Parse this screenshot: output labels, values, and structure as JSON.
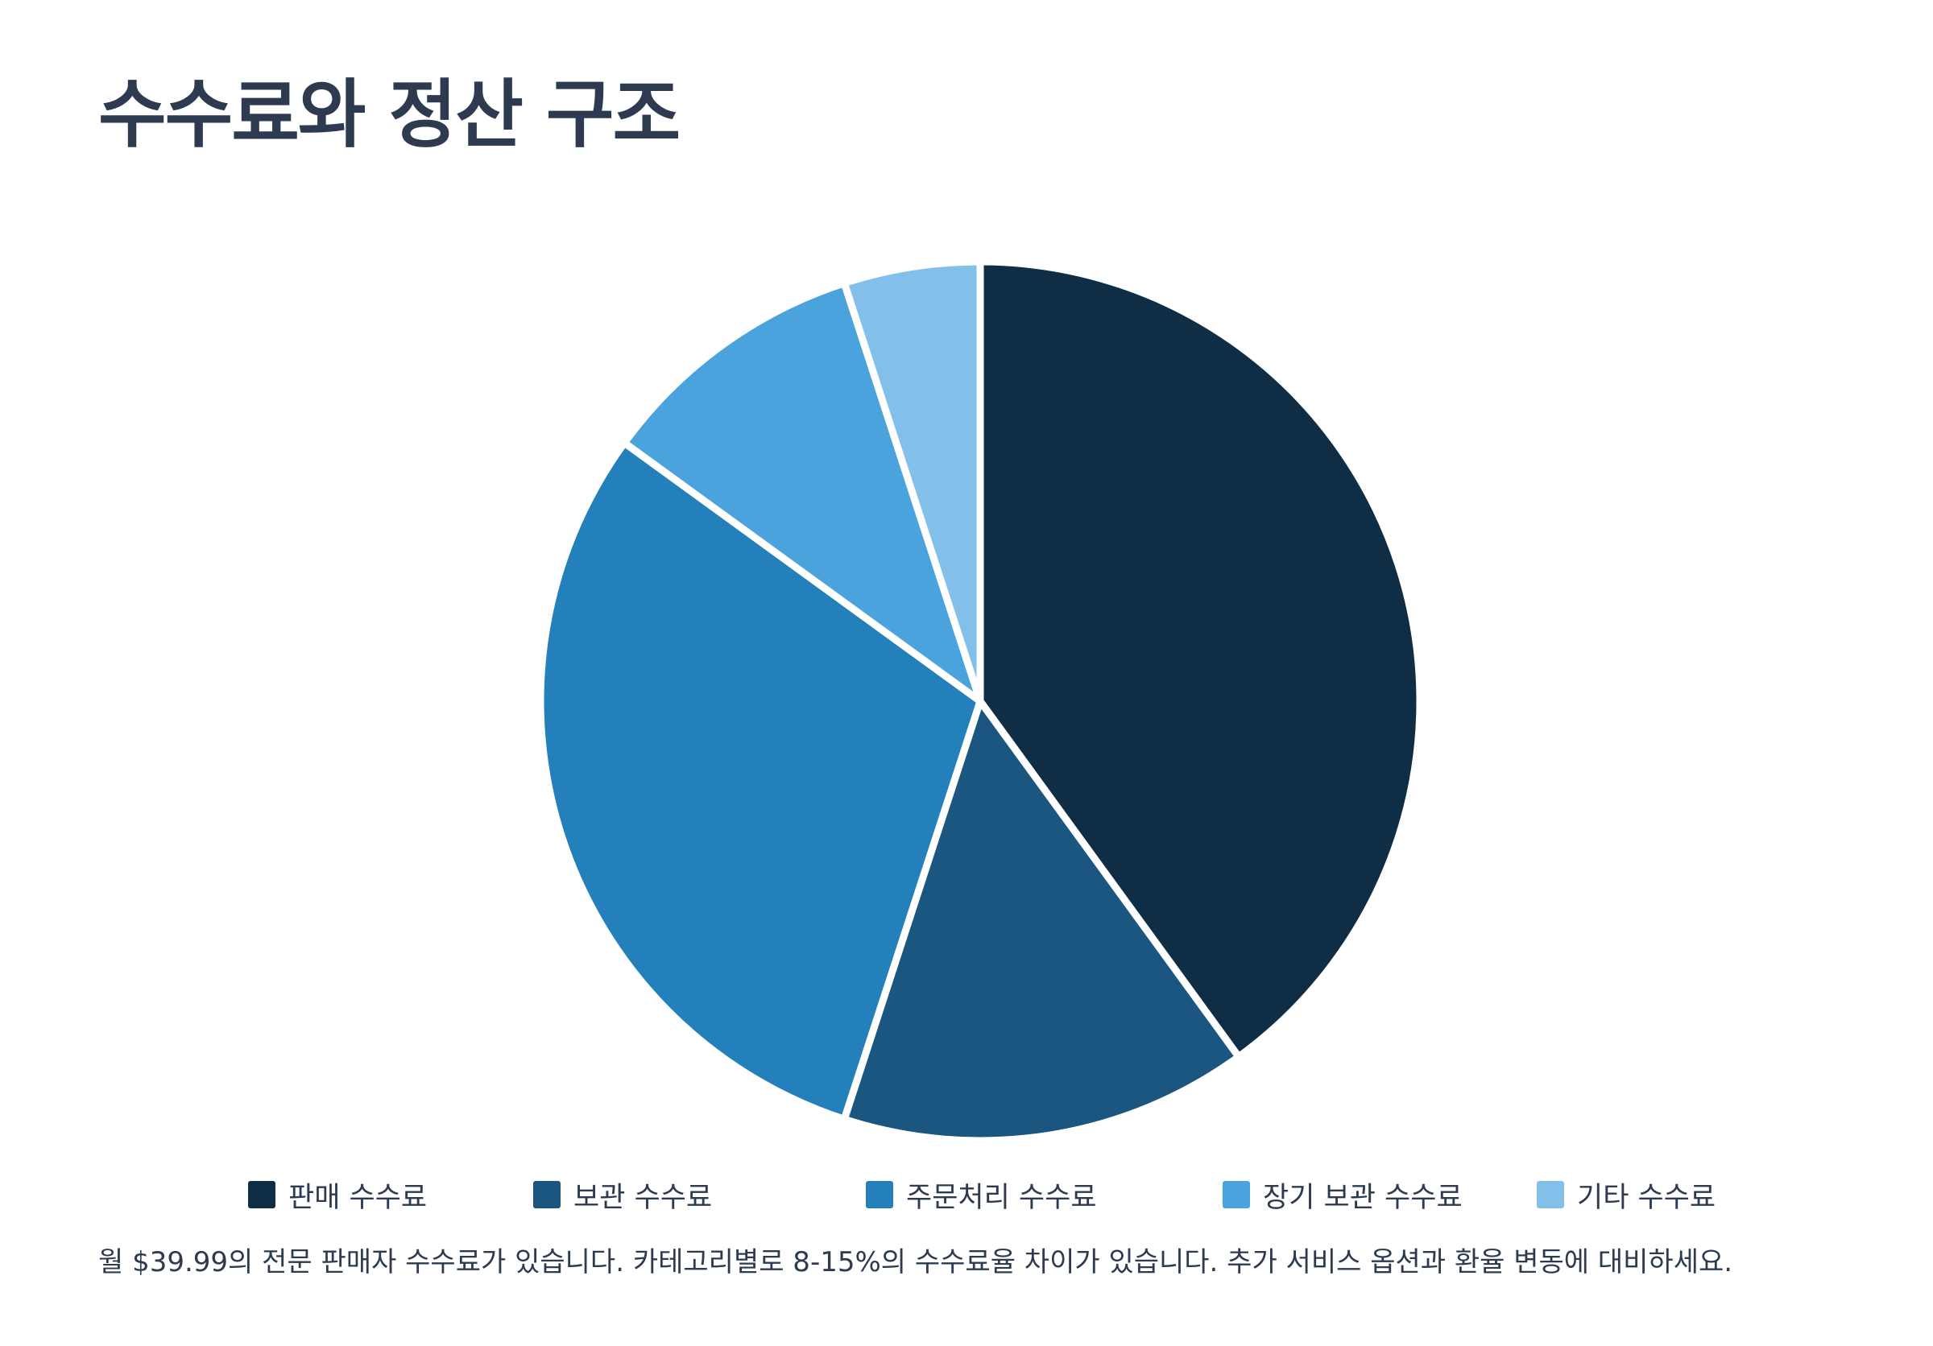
{
  "page": {
    "title": "수수료와 정산 구조",
    "footer": "월 $39.99의 전문 판매자 수수료가 있습니다. 카테고리별로 8-15%의 수수료율 차이가 있습니다. 추가 서비스 옵션과 환율 변동에 대비하세요."
  },
  "chart_data": {
    "type": "pie",
    "title": "",
    "start_angle": "top",
    "direction": "clockwise",
    "legend_position": "bottom",
    "slices": [
      {
        "label": "판매 수수료",
        "value": 40,
        "color": "#0f2d44"
      },
      {
        "label": "보관 수수료",
        "value": 15,
        "color": "#1a567f"
      },
      {
        "label": "주문처리 수수료",
        "value": 30,
        "color": "#2480ba"
      },
      {
        "label": "장기 보관 수수료",
        "value": 10,
        "color": "#4aa3dd"
      },
      {
        "label": "기타 수수료",
        "value": 5,
        "color": "#83c0e9"
      }
    ]
  }
}
